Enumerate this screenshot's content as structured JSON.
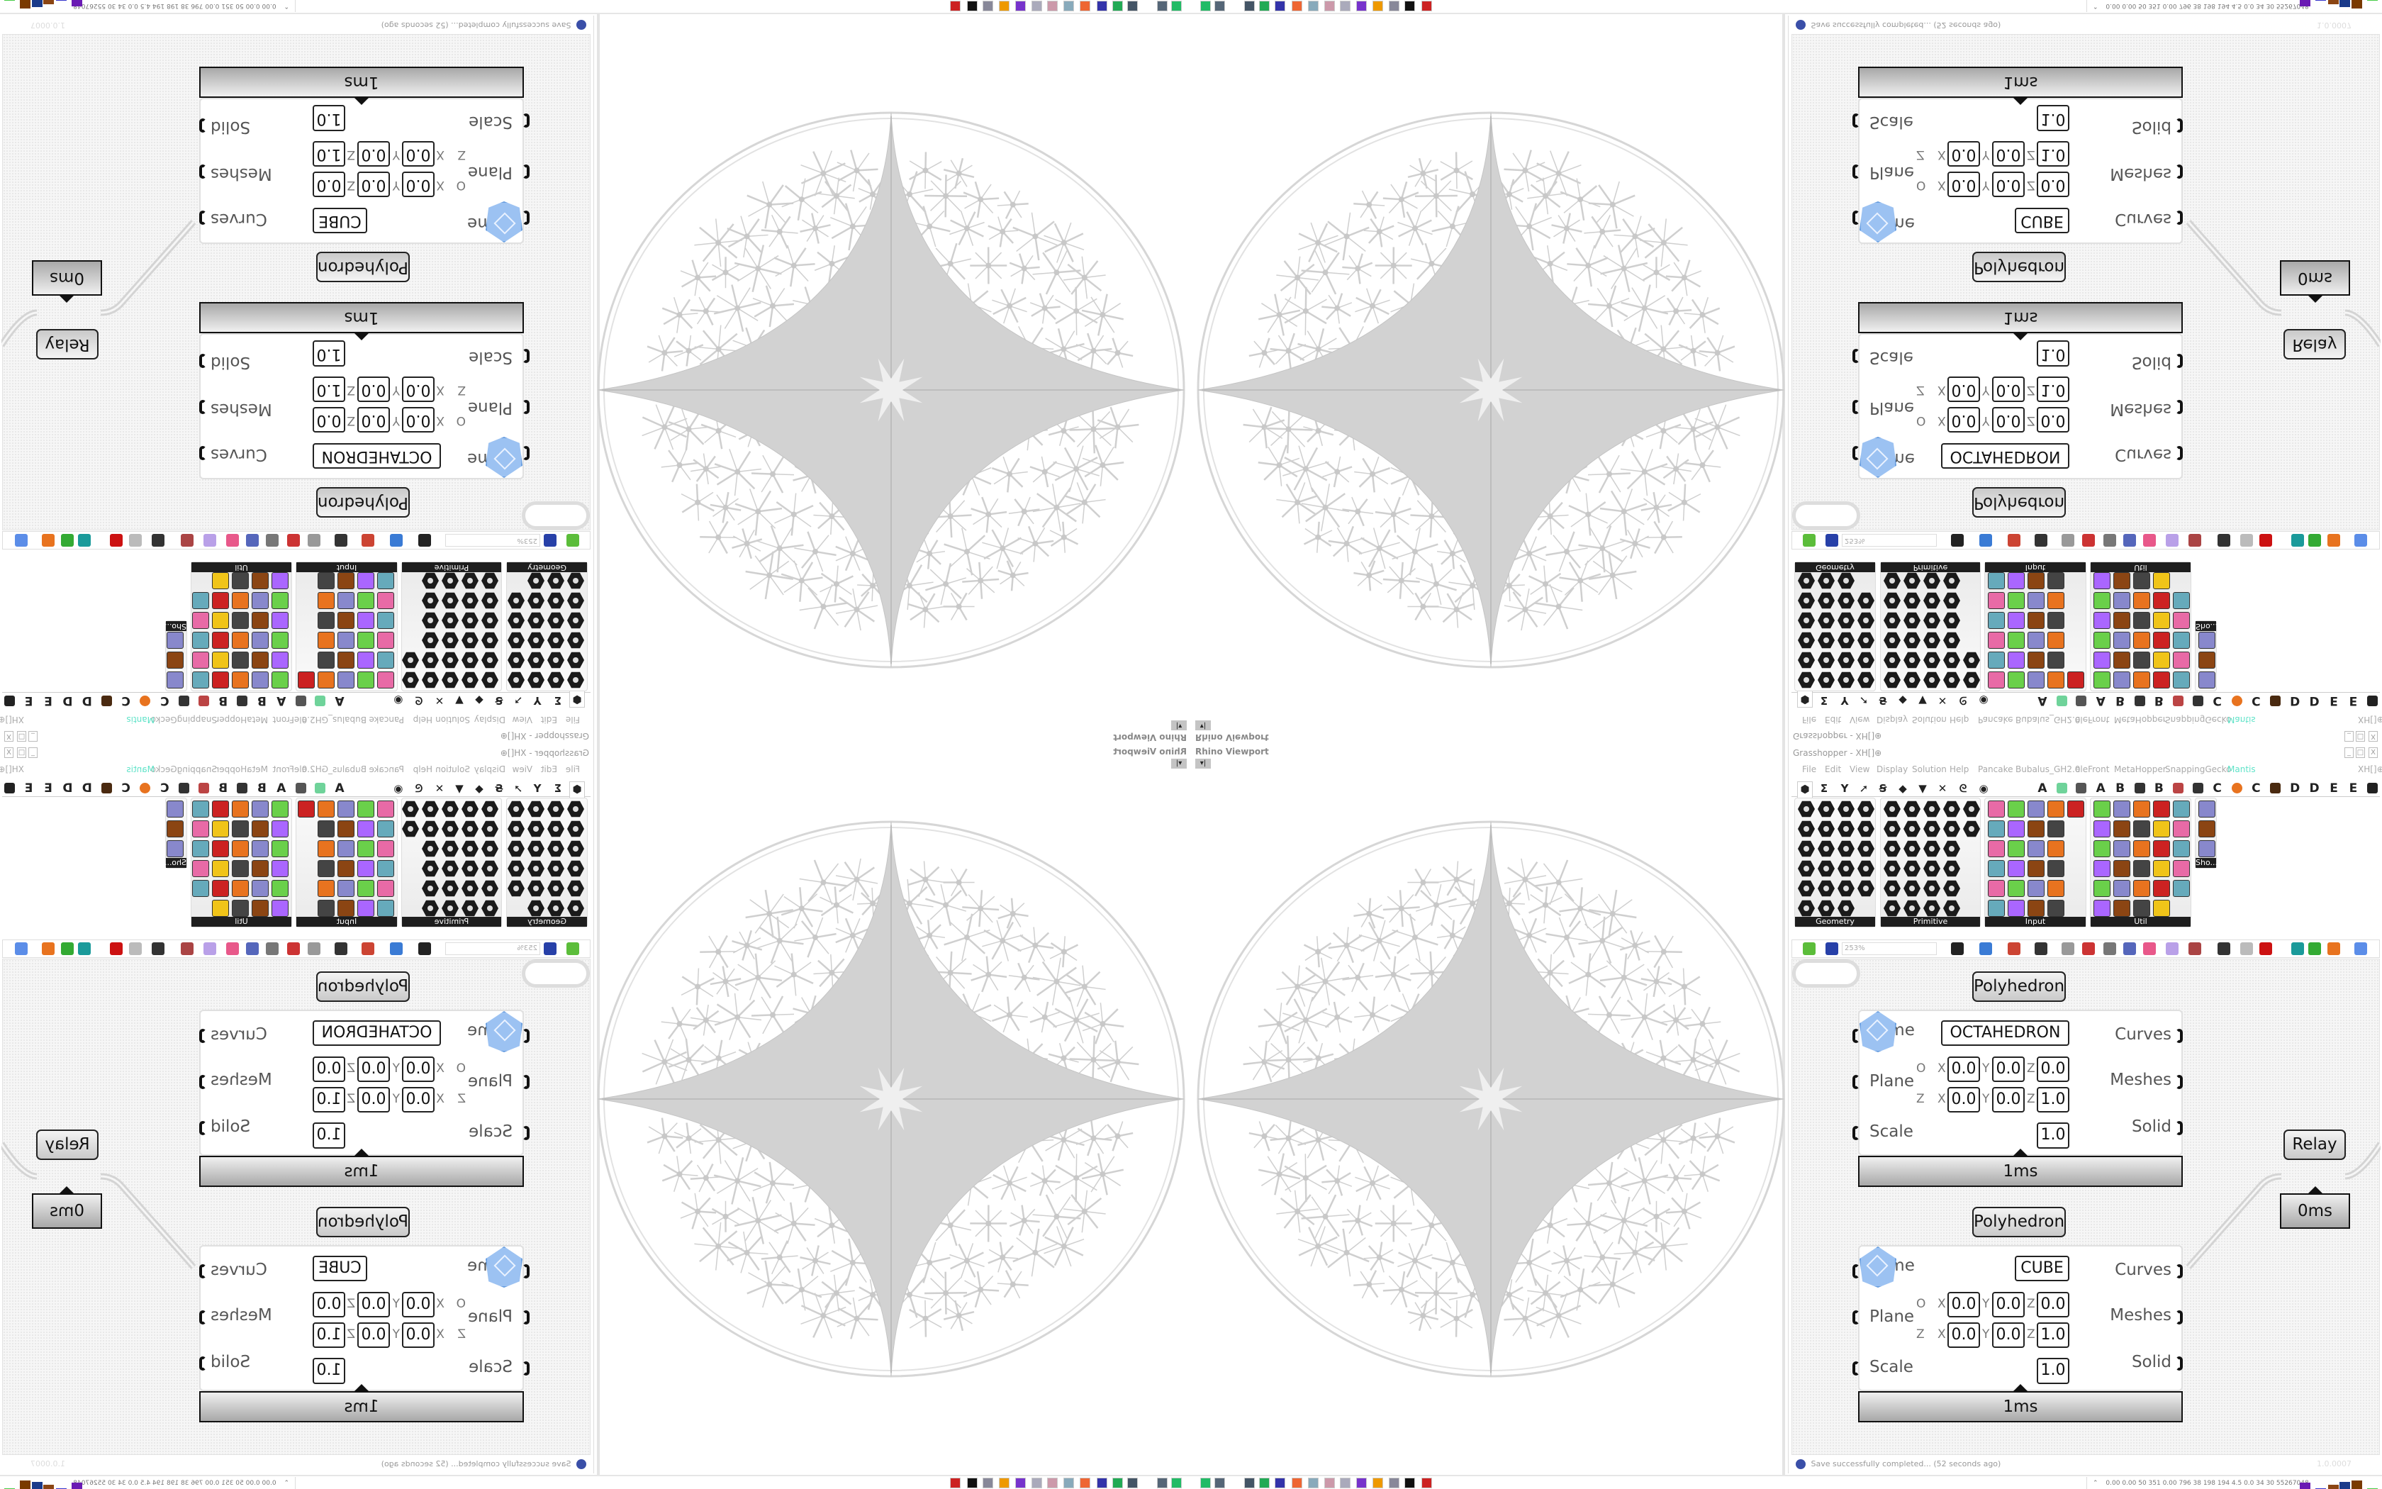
{
  "viewport": {
    "title": "Rhino Viewport",
    "menu_button": "▾|"
  },
  "window": {
    "title": "Grasshopper - XH[]⊕",
    "minimize": "_",
    "maximize": "□",
    "close": "X"
  },
  "menu": {
    "items": [
      "File",
      "Edit",
      "View",
      "Display",
      "Solution",
      "Help",
      "Pancake",
      "Bubalus_GH2.0",
      "eleFront",
      "MetaHopper",
      "SnappingGecko",
      "Mantis"
    ],
    "active_color": "#5fe3c8",
    "right_label": "XH[]⊕"
  },
  "tabs": {
    "icon_tabs": [
      "params-hex-icon",
      "sigma-maths-icon",
      "sets-y-icon",
      "vector-arrow-icon",
      "curve-icon",
      "surface-icon",
      "mesh-icon",
      "intersect-icon",
      "transform-icon",
      "display-eye-icon"
    ],
    "plugin_tabs": [
      "A",
      "green-leaf-icon",
      "cog-icon",
      "A",
      "B",
      "mountain-icon",
      "B",
      "shield-icon",
      "grid-icon",
      "C",
      "orange-circle-icon",
      "C",
      "bird-icon",
      "D",
      "D",
      "E",
      "E",
      "grid-box-icon"
    ]
  },
  "panels": [
    {
      "label": "Geometry"
    },
    {
      "label": "Primitive"
    },
    {
      "label": "Input"
    },
    {
      "label": "Util"
    },
    {
      "label": "Sho..."
    }
  ],
  "toolbar": {
    "zoom": "253%"
  },
  "canvas": {
    "components": [
      {
        "title": "Polyhedron",
        "name_label": "Name",
        "name_value": "OCTAHEDRON",
        "plane_label": "Plane",
        "scale_label": "Scale",
        "origin_label": "O",
        "z_label": "Z",
        "x": "X",
        "y": "Y",
        "z": "Z",
        "origin": [
          "0.0",
          "0.0",
          "0.0"
        ],
        "zaxis": [
          "0.0",
          "0.0",
          "1.0"
        ],
        "scale": "1.0",
        "outputs": [
          "Curves",
          "Meshes",
          "Solid"
        ],
        "timer": "1ms"
      },
      {
        "title": "Polyhedron",
        "name_label": "Name",
        "name_value": "CUBE",
        "plane_label": "Plane",
        "scale_label": "Scale",
        "origin_label": "O",
        "z_label": "Z",
        "x": "X",
        "y": "Y",
        "z": "Z",
        "origin": [
          "0.0",
          "0.0",
          "0.0"
        ],
        "zaxis": [
          "0.0",
          "0.0",
          "1.0"
        ],
        "scale": "1.0",
        "outputs": [
          "Curves",
          "Meshes",
          "Solid"
        ],
        "timer": "1ms"
      }
    ],
    "relay": {
      "label": "Relay",
      "timer": "0ms"
    }
  },
  "status": {
    "message": "Save successfully completed... (52 seconds ago)",
    "version": "1.0.0007"
  },
  "taskbar": {
    "icons": [
      "monitor-green-icon",
      "monitor-icon",
      "monitor-dark-icon",
      "monitor-green-2-icon",
      "floppy-icon",
      "firefox-icon",
      "notepad-icon",
      "paint-icon",
      "paint-2-icon",
      "purple-app-icon",
      "blender-icon",
      "file-icon",
      "cow-icon",
      "red-circle-icon"
    ],
    "tray_text": "0.00 0.00 50 351 0.00 796 38 198 194 4.5 0.0 34 30 55267048",
    "tray_chevron": "⌃"
  }
}
